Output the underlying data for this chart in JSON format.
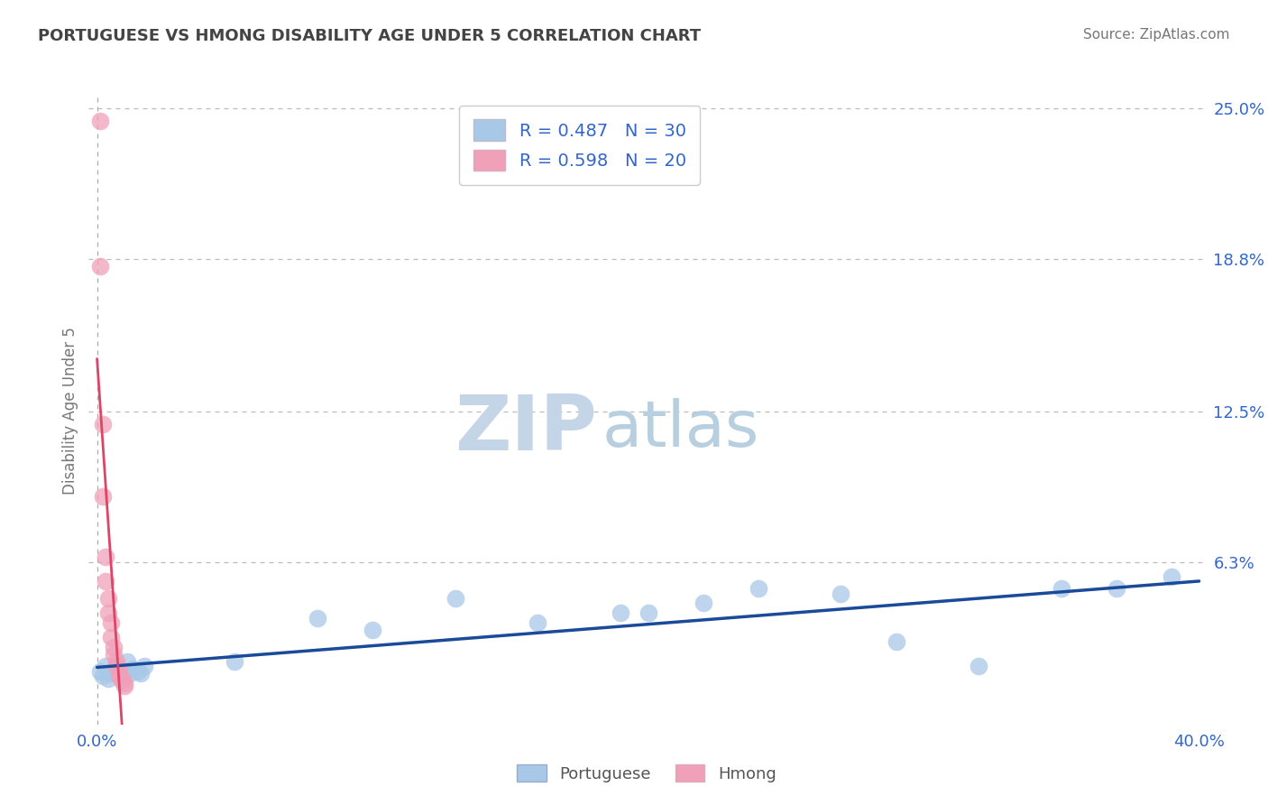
{
  "title": "PORTUGUESE VS HMONG DISABILITY AGE UNDER 5 CORRELATION CHART",
  "source": "Source: ZipAtlas.com",
  "ylabel": "Disability Age Under 5",
  "xlim_min": -0.003,
  "xlim_max": 0.402,
  "ylim_min": -0.004,
  "ylim_max": 0.255,
  "xtick_labels": [
    "0.0%",
    "40.0%"
  ],
  "xtick_positions": [
    0.0,
    0.4
  ],
  "ytick_labels": [
    "6.3%",
    "12.5%",
    "18.8%",
    "25.0%"
  ],
  "ytick_positions": [
    0.063,
    0.125,
    0.188,
    0.25
  ],
  "grid_color": "#bbbbbb",
  "background_color": "#ffffff",
  "portuguese_color": "#a8c8e8",
  "hmong_color": "#f0a0b8",
  "portuguese_line_color": "#1a4a99",
  "hmong_line_color": "#dd4466",
  "portuguese_R": 0.487,
  "portuguese_N": 30,
  "hmong_R": 0.598,
  "hmong_N": 20,
  "watermark_zip": "ZIP",
  "watermark_atlas": "atlas",
  "watermark_color_zip": "#c5d5e8",
  "watermark_color_atlas": "#b8cfe0",
  "portuguese_x": [
    0.001,
    0.002,
    0.003,
    0.004,
    0.005,
    0.007,
    0.008,
    0.009,
    0.01,
    0.011,
    0.012,
    0.013,
    0.015,
    0.016,
    0.017,
    0.05,
    0.08,
    0.1,
    0.13,
    0.16,
    0.19,
    0.2,
    0.22,
    0.24,
    0.27,
    0.29,
    0.32,
    0.35,
    0.37,
    0.39
  ],
  "portuguese_y": [
    0.018,
    0.016,
    0.02,
    0.015,
    0.017,
    0.02,
    0.019,
    0.016,
    0.018,
    0.022,
    0.017,
    0.019,
    0.018,
    0.017,
    0.02,
    0.022,
    0.04,
    0.035,
    0.048,
    0.038,
    0.042,
    0.042,
    0.046,
    0.052,
    0.05,
    0.03,
    0.02,
    0.052,
    0.052,
    0.057
  ],
  "hmong_x": [
    0.001,
    0.001,
    0.002,
    0.002,
    0.003,
    0.003,
    0.004,
    0.004,
    0.005,
    0.005,
    0.006,
    0.006,
    0.007,
    0.007,
    0.008,
    0.008,
    0.009,
    0.009,
    0.01,
    0.01
  ],
  "hmong_y": [
    0.245,
    0.185,
    0.12,
    0.09,
    0.065,
    0.055,
    0.048,
    0.042,
    0.038,
    0.032,
    0.028,
    0.025,
    0.022,
    0.02,
    0.018,
    0.016,
    0.015,
    0.014,
    0.013,
    0.012
  ],
  "hmong_line_x0": 0.0,
  "hmong_line_x1": 0.012,
  "portuguese_line_x0": 0.0,
  "portuguese_line_x1": 0.4
}
